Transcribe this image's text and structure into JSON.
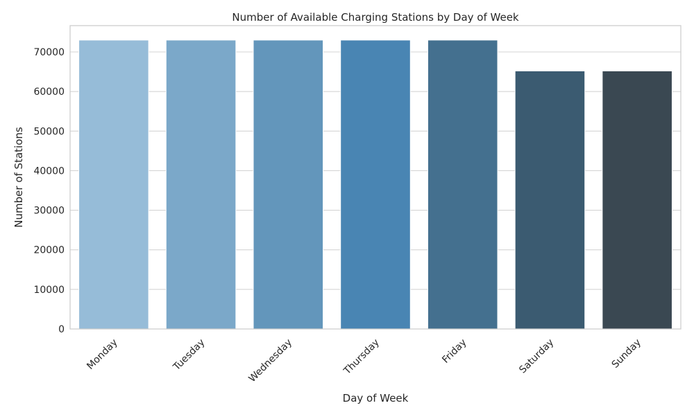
{
  "chart_data": {
    "type": "bar",
    "title": "Number of Available Charging Stations by Day of Week",
    "xlabel": "Day of Week",
    "ylabel": "Number of Stations",
    "categories": [
      "Monday",
      "Tuesday",
      "Wednesday",
      "Thursday",
      "Friday",
      "Saturday",
      "Sunday"
    ],
    "values": [
      73000,
      73000,
      73000,
      73000,
      73000,
      65200,
      65200
    ],
    "ylim": [
      0,
      76650
    ],
    "yticks": [
      0,
      10000,
      20000,
      30000,
      40000,
      50000,
      60000,
      70000
    ],
    "ytick_labels": [
      "0",
      "10000",
      "20000",
      "30000",
      "40000",
      "50000",
      "60000",
      "70000"
    ],
    "grid": "horizontal",
    "xtick_rotation_deg": 45,
    "colors": [
      "#96bcd8",
      "#7ba8c9",
      "#6396bb",
      "#4985b3",
      "#44708f",
      "#3b5b71",
      "#3a4852"
    ],
    "grid_color": "#d5d5d5",
    "frame_color": "#cccccc"
  }
}
